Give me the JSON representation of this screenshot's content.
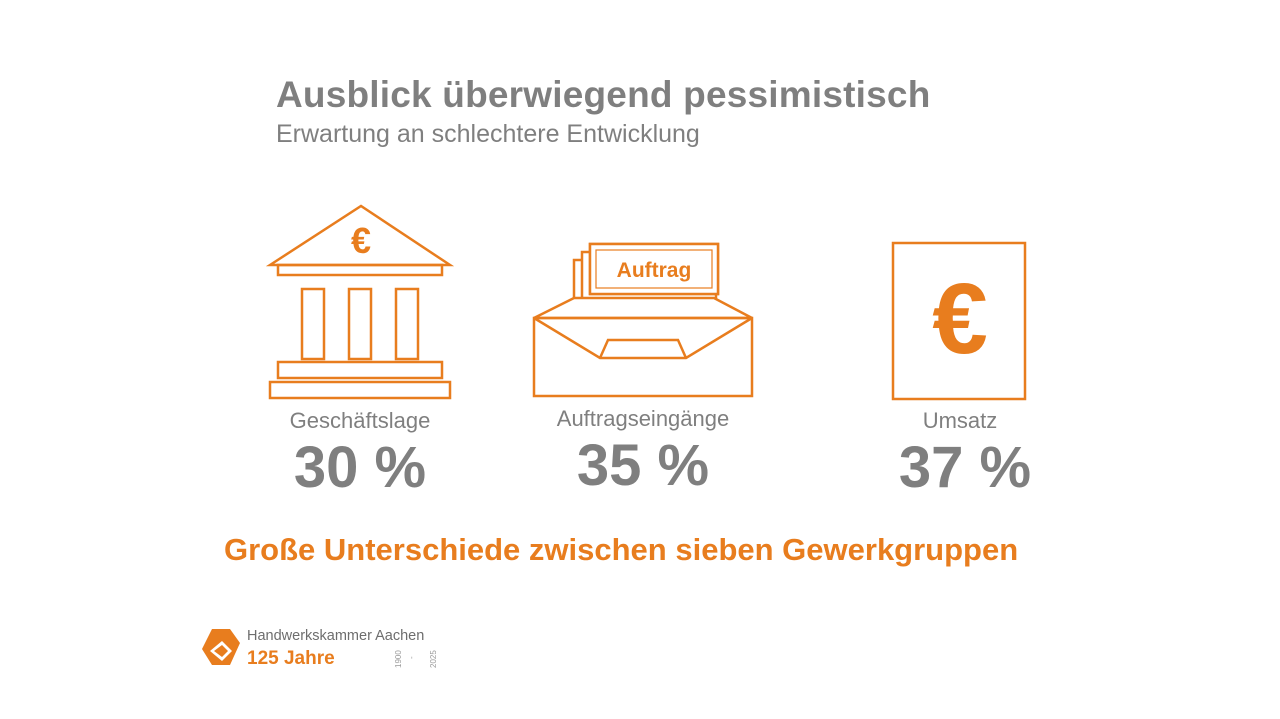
{
  "header": {
    "title": "Ausblick überwiegend pessimistisch",
    "subtitle": "Erwartung an schlechtere Entwicklung"
  },
  "metrics": [
    {
      "icon": "bank-euro-icon",
      "label": "Geschäftslage",
      "value": "30 %"
    },
    {
      "icon": "order-tray-icon",
      "label": "Auftragseingänge",
      "value": "35 %",
      "icon_text": "Auftrag"
    },
    {
      "icon": "euro-note-icon",
      "label": "Umsatz",
      "value": "37 %"
    }
  ],
  "icon_symbols": {
    "euro": "€"
  },
  "conclusion": "Große Unterschiede zwischen sieben Gewerkgruppen",
  "footer": {
    "org_name": "Handwerkskammer Aachen",
    "anniversary": "125 Jahre",
    "year_start": "1900",
    "year_end": "2025",
    "year_sep": "-"
  },
  "colors": {
    "accent": "#e87d1e",
    "text_gray": "#7f7f7f"
  }
}
